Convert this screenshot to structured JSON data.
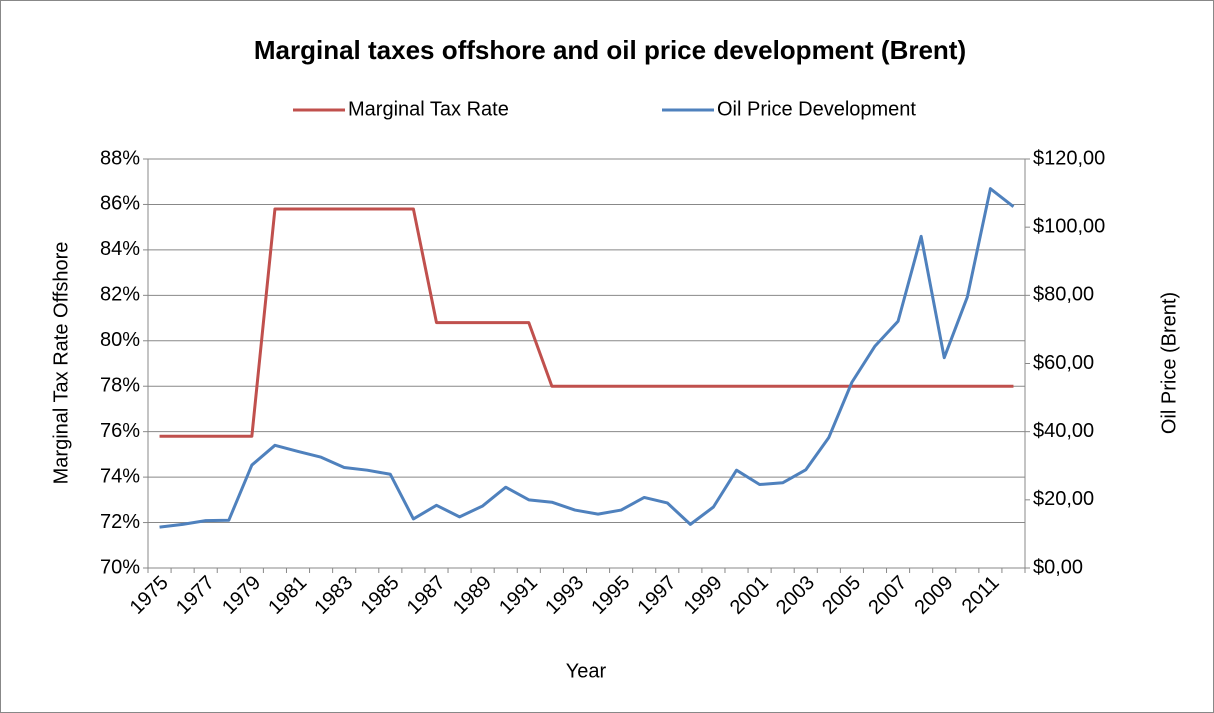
{
  "chart_data": {
    "type": "line",
    "title": "Marginal taxes offshore and oil price development (Brent)",
    "x_label": "Year",
    "y_label": "Marginal Tax Rate Offshore",
    "y2_label": "Oil Price (Brent)",
    "categories": [
      "1975",
      null,
      "1977",
      null,
      "1979",
      null,
      "1981",
      null,
      "1983",
      null,
      "1985",
      null,
      "1987",
      null,
      "1989",
      null,
      "1991",
      null,
      "1993",
      null,
      "1995",
      null,
      "1997",
      null,
      "1999",
      null,
      "2001",
      null,
      "2003",
      null,
      "2005",
      null,
      "2007",
      null,
      "2009",
      null,
      "2011",
      null
    ],
    "series": [
      {
        "name": "Marginal Tax Rate",
        "color": "#c0504d",
        "axis": "y",
        "values": [
          75.8,
          75.8,
          75.8,
          75.8,
          75.8,
          85.8,
          85.8,
          85.8,
          85.8,
          85.8,
          85.8,
          85.8,
          80.8,
          80.8,
          80.8,
          80.8,
          80.8,
          78,
          78,
          78,
          78,
          78,
          78,
          78,
          78,
          78,
          78,
          78,
          78,
          78,
          78,
          78,
          78,
          78,
          78,
          78,
          78,
          78
        ]
      },
      {
        "name": "Oil Price Development",
        "color": "#4f81bd",
        "axis": "y2",
        "values": [
          12.0,
          12.8,
          13.9,
          14.0,
          30.2,
          36.0,
          34.2,
          32.5,
          29.5,
          28.7,
          27.5,
          14.4,
          18.4,
          15.0,
          18.2,
          23.7,
          20.0,
          19.3,
          17.0,
          15.8,
          17.0,
          20.7,
          19.1,
          12.8,
          17.9,
          28.7,
          24.5,
          25.0,
          28.8,
          38.3,
          54.5,
          65.1,
          72.4,
          97.3,
          61.7,
          79.5,
          111.3,
          106.0
        ]
      }
    ],
    "ylim": [
      70,
      88
    ],
    "yticks": [
      {
        "value": 70,
        "label": "70%"
      },
      {
        "value": 72,
        "label": "72%"
      },
      {
        "value": 74,
        "label": "74%"
      },
      {
        "value": 76,
        "label": "76%"
      },
      {
        "value": 78,
        "label": "78%"
      },
      {
        "value": 80,
        "label": "80%"
      },
      {
        "value": 82,
        "label": "82%"
      },
      {
        "value": 84,
        "label": "84%"
      },
      {
        "value": 86,
        "label": "86%"
      },
      {
        "value": 88,
        "label": "88%"
      }
    ],
    "y2lim": [
      0,
      120
    ],
    "y2ticks": [
      {
        "value": 0,
        "label": "$0,00"
      },
      {
        "value": 20,
        "label": "$20,00"
      },
      {
        "value": 40,
        "label": "$40,00"
      },
      {
        "value": 60,
        "label": "$60,00"
      },
      {
        "value": 80,
        "label": "$80,00"
      },
      {
        "value": 100,
        "label": "$100,00"
      },
      {
        "value": 120,
        "label": "$120,00"
      }
    ],
    "grid": true,
    "legend": "top"
  }
}
